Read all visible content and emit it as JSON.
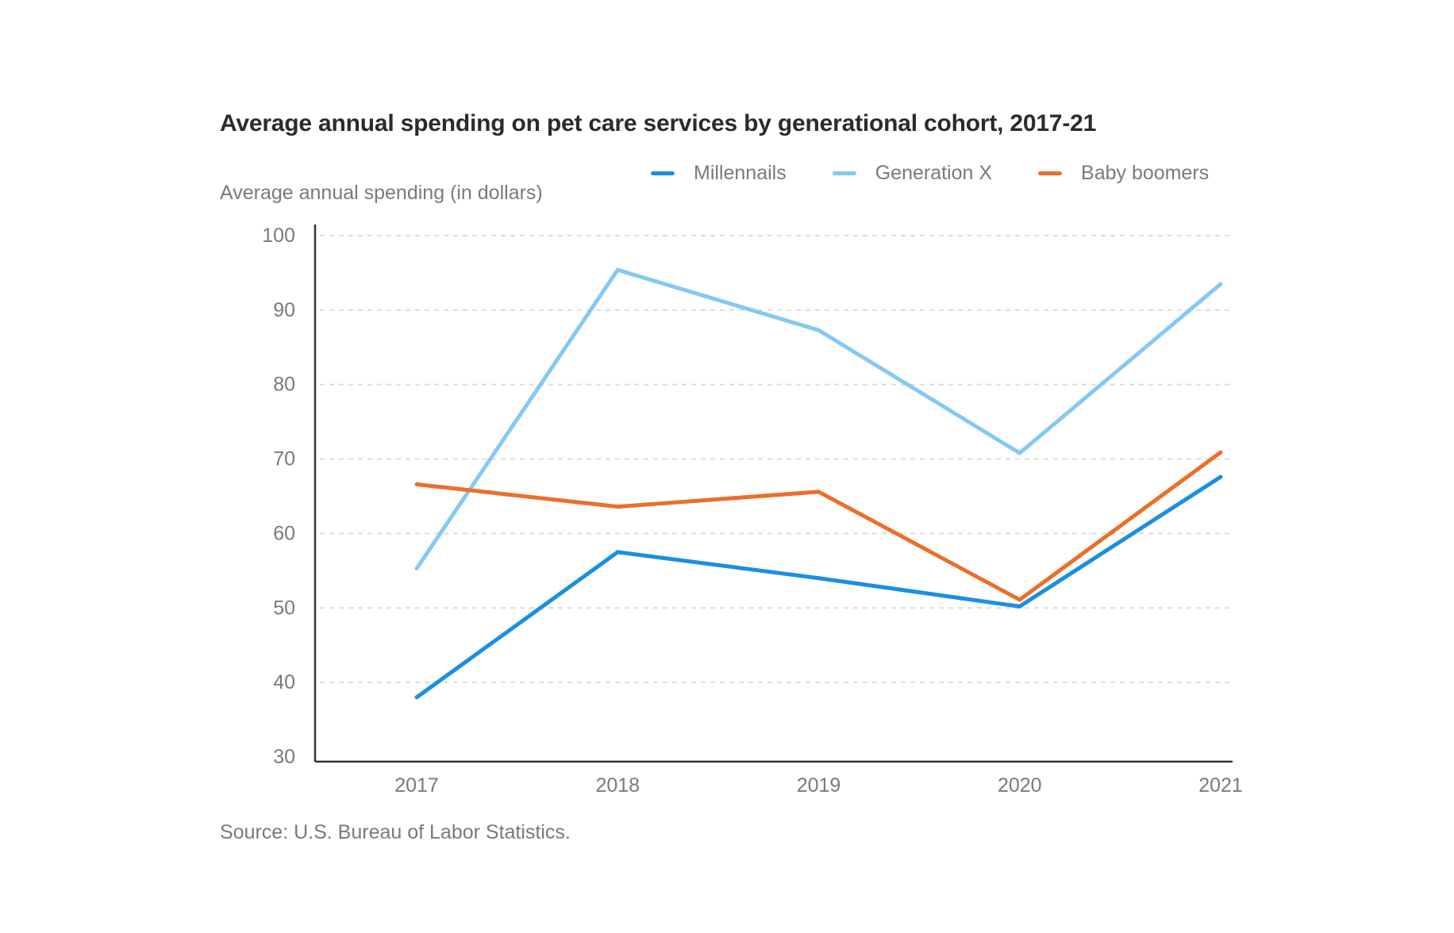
{
  "chart_data": {
    "type": "line",
    "title": "Average annual spending on pet care services by generational cohort, 2017-21",
    "ylabel": "Average annual spending (in dollars)",
    "xlabel": "",
    "source": "Source: U.S. Bureau of Labor Statistics.",
    "categories": [
      "2017",
      "2018",
      "2019",
      "2020",
      "2021"
    ],
    "ylim": [
      30,
      100
    ],
    "yticks": [
      30,
      40,
      50,
      60,
      70,
      80,
      90,
      100
    ],
    "grid": true,
    "legend_position": "top-right",
    "series": [
      {
        "name": "Millennails",
        "color": "#1a8fe3",
        "values": [
          38,
          57.5,
          54,
          50.2,
          67.6
        ]
      },
      {
        "name": "Generation X",
        "color": "#86c8f4",
        "values": [
          55.3,
          95.4,
          87.3,
          70.8,
          93.5
        ]
      },
      {
        "name": "Baby boomers",
        "color": "#eb6f2a",
        "values": [
          66.6,
          63.6,
          65.6,
          51.1,
          70.9
        ]
      }
    ],
    "axis_color": "#333333",
    "grid_color": "#dddddd",
    "tick_label_color": "#7a7a7a"
  }
}
